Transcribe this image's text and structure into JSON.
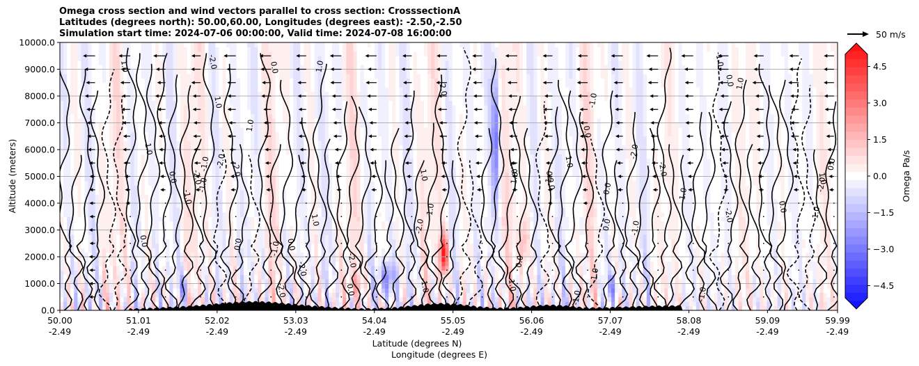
{
  "chart_data": {
    "type": "heatmap",
    "title_lines": [
      "Omega cross section and wind vectors parallel to cross section: CrosssectionA",
      "Latitudes (degrees north): 50.00,60.00, Longitudes (degrees east): -2.50,-2.50",
      "Simulation start time: 2024-07-06 00:00:00, Valid time: 2024-07-08 16:00:00"
    ],
    "ylabel": "Altitude (meters)",
    "xlabel_line1": "Latitude (degrees N)",
    "xlabel_line2": "Longitude (degrees E)",
    "ylim": [
      0,
      10000
    ],
    "xlim": [
      50.0,
      59.99
    ],
    "y_ticks": [
      "0.0",
      "1000.0",
      "2000.0",
      "3000.0",
      "4000.0",
      "5000.0",
      "6000.0",
      "7000.0",
      "8000.0",
      "9000.0",
      "10000.0"
    ],
    "x_ticks": [
      {
        "lat": "50.00",
        "lon": "-2.49"
      },
      {
        "lat": "51.01",
        "lon": "-2.49"
      },
      {
        "lat": "52.02",
        "lon": "-2.49"
      },
      {
        "lat": "53.03",
        "lon": "-2.49"
      },
      {
        "lat": "54.04",
        "lon": "-2.49"
      },
      {
        "lat": "55.05",
        "lon": "-2.49"
      },
      {
        "lat": "56.06",
        "lon": "-2.49"
      },
      {
        "lat": "57.07",
        "lon": "-2.49"
      },
      {
        "lat": "58.08",
        "lon": "-2.49"
      },
      {
        "lat": "59.09",
        "lon": "-2.49"
      },
      {
        "lat": "59.99",
        "lon": "-2.49"
      }
    ],
    "grid": "horizontal",
    "colorbar": {
      "label": "Omega Pa/s",
      "range": [
        -5.0,
        5.0
      ],
      "ticks": [
        "4.5",
        "3.0",
        "1.5",
        "0.0",
        "−1.5",
        "−3.0",
        "−4.5"
      ],
      "tick_values": [
        4.5,
        3.0,
        1.5,
        0.0,
        -1.5,
        -3.0,
        -4.5
      ],
      "colormap": "bwr",
      "extend": "both"
    },
    "quiver_key": "50 m/s",
    "contour_labels": [
      "0.0",
      "1.0",
      "-1.0",
      "-2.0"
    ],
    "colors": {
      "positive": "#ff0000",
      "negative": "#0000ff",
      "terrain": "#000000"
    }
  }
}
